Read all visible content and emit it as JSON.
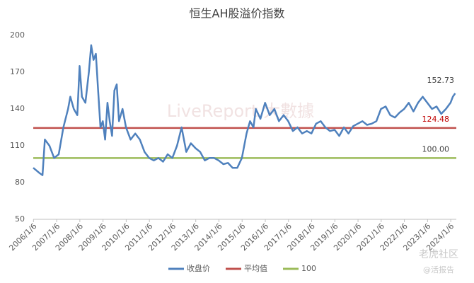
{
  "chart_data": {
    "type": "line",
    "title": "恒生AH股溢价指数",
    "x": [
      2006.0,
      2006.25,
      2006.4,
      2006.5,
      2006.7,
      2006.9,
      2007.1,
      2007.3,
      2007.5,
      2007.6,
      2007.75,
      2007.9,
      2008.0,
      2008.1,
      2008.25,
      2008.4,
      2008.5,
      2008.6,
      2008.7,
      2008.8,
      2008.9,
      2009.0,
      2009.1,
      2009.2,
      2009.3,
      2009.4,
      2009.5,
      2009.6,
      2009.7,
      2009.85,
      2010.0,
      2010.2,
      2010.4,
      2010.6,
      2010.8,
      2011.0,
      2011.2,
      2011.4,
      2011.6,
      2011.8,
      2012.0,
      2012.2,
      2012.4,
      2012.6,
      2012.8,
      2013.0,
      2013.2,
      2013.4,
      2013.6,
      2013.8,
      2014.0,
      2014.2,
      2014.4,
      2014.6,
      2014.8,
      2015.0,
      2015.2,
      2015.35,
      2015.5,
      2015.6,
      2015.8,
      2016.0,
      2016.2,
      2016.4,
      2016.6,
      2016.8,
      2017.0,
      2017.2,
      2017.4,
      2017.6,
      2017.8,
      2018.0,
      2018.2,
      2018.4,
      2018.6,
      2018.8,
      2019.0,
      2019.2,
      2019.4,
      2019.6,
      2019.8,
      2020.0,
      2020.2,
      2020.4,
      2020.6,
      2020.8,
      2021.0,
      2021.2,
      2021.4,
      2021.6,
      2021.8,
      2022.0,
      2022.2,
      2022.4,
      2022.6,
      2022.8,
      2023.0,
      2023.2,
      2023.4,
      2023.6,
      2023.8,
      2024.0,
      2024.1,
      2024.2
    ],
    "series": [
      {
        "name": "收盘价",
        "color": "#4f81bd",
        "values": [
          92,
          88,
          86,
          115,
          110,
          100,
          103,
          125,
          140,
          150,
          140,
          135,
          175,
          150,
          145,
          170,
          192,
          180,
          185,
          155,
          125,
          130,
          115,
          145,
          130,
          118,
          155,
          160,
          130,
          140,
          125,
          115,
          120,
          115,
          105,
          100,
          98,
          100,
          97,
          103,
          100,
          110,
          125,
          105,
          112,
          108,
          105,
          98,
          100,
          100,
          98,
          95,
          96,
          92,
          92,
          100,
          120,
          130,
          125,
          140,
          132,
          145,
          135,
          140,
          130,
          135,
          130,
          122,
          125,
          120,
          122,
          120,
          128,
          130,
          125,
          122,
          123,
          118,
          125,
          120,
          126,
          128,
          130,
          127,
          128,
          130,
          140,
          142,
          135,
          133,
          137,
          140,
          145,
          138,
          145,
          150,
          145,
          140,
          142,
          136,
          140,
          145,
          150,
          152.73
        ],
        "end_label": "152.73"
      }
    ],
    "hlines": [
      {
        "name": "平均值",
        "color": "#c0504d",
        "value": 124.48,
        "label": "124.48"
      },
      {
        "name": "100",
        "color": "#9bbb59",
        "value": 100,
        "label": "100.00"
      }
    ],
    "xlim": [
      2006.0,
      2024.25
    ],
    "xticks": [
      {
        "value": 2006.01,
        "label": "2006/1/6"
      },
      {
        "value": 2007.01,
        "label": "2007/1/6"
      },
      {
        "value": 2008.01,
        "label": "2008/1/6"
      },
      {
        "value": 2009.01,
        "label": "2009/1/6"
      },
      {
        "value": 2010.01,
        "label": "2010/1/6"
      },
      {
        "value": 2011.01,
        "label": "2011/1/6"
      },
      {
        "value": 2012.01,
        "label": "2012/1/6"
      },
      {
        "value": 2013.01,
        "label": "2013/1/6"
      },
      {
        "value": 2014.01,
        "label": "2014/1/6"
      },
      {
        "value": 2015.01,
        "label": "2015/1/6"
      },
      {
        "value": 2016.01,
        "label": "2016/1/6"
      },
      {
        "value": 2017.01,
        "label": "2017/1/6"
      },
      {
        "value": 2018.01,
        "label": "2018/1/6"
      },
      {
        "value": 2019.01,
        "label": "2019/1/6"
      },
      {
        "value": 2020.01,
        "label": "2020/1/6"
      },
      {
        "value": 2021.01,
        "label": "2021/1/6"
      },
      {
        "value": 2022.01,
        "label": "2022/1/6"
      },
      {
        "value": 2023.01,
        "label": "2023/1/6"
      },
      {
        "value": 2024.01,
        "label": "2024/1/6"
      }
    ],
    "ylim": [
      50,
      200
    ],
    "yticks": [
      50,
      80,
      110,
      140,
      170,
      200
    ],
    "grid": false,
    "watermarks": [
      "LiveReport 大數據",
      "老虎社区",
      "@活报告"
    ]
  }
}
